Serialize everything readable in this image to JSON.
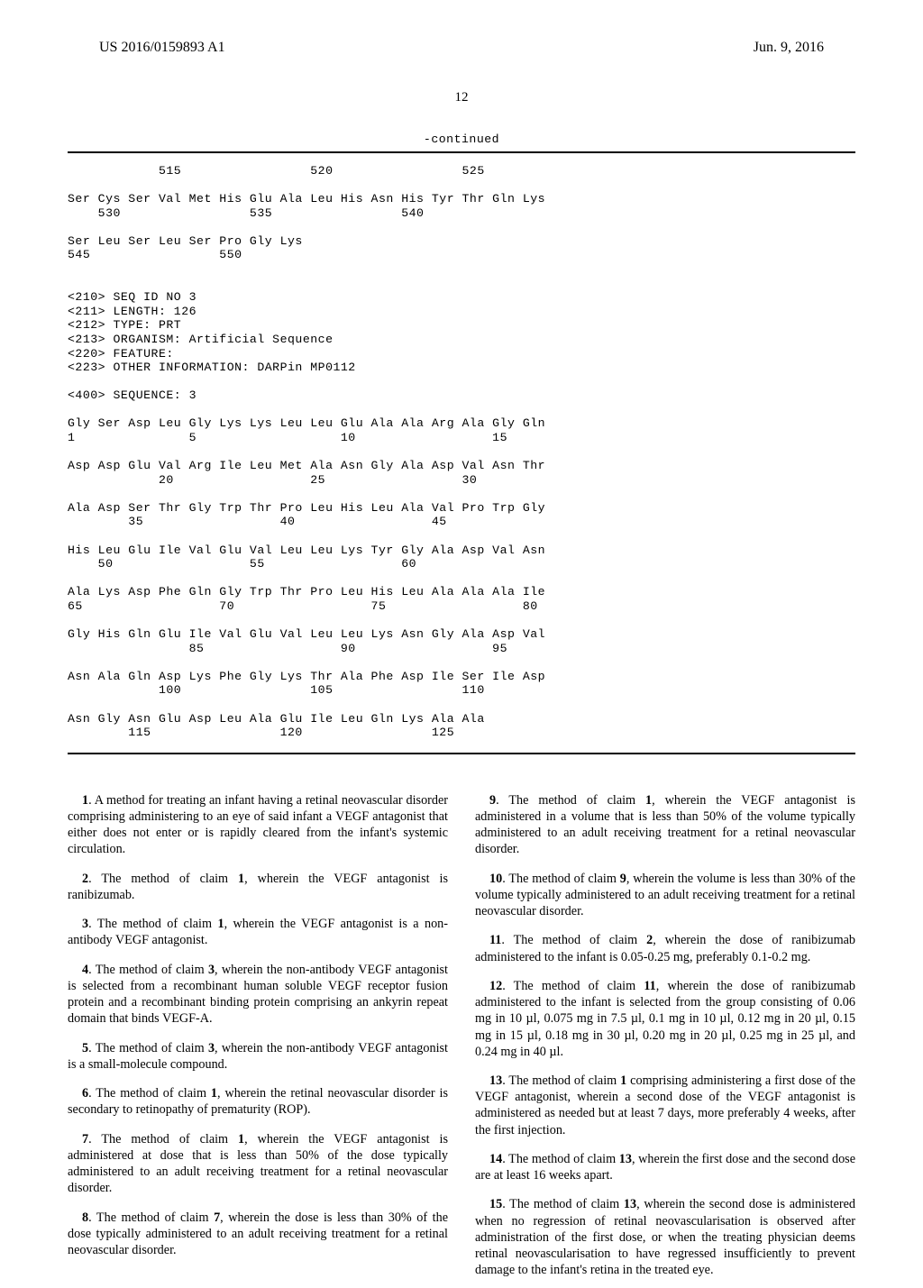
{
  "header": {
    "pub_number": "US 2016/0159893 A1",
    "pub_date": "Jun. 9, 2016"
  },
  "page_number": "12",
  "continued_label": "-continued",
  "sequence_listing": "            515                 520                 525\n\nSer Cys Ser Val Met His Glu Ala Leu His Asn His Tyr Thr Gln Lys\n    530                 535                 540\n\nSer Leu Ser Leu Ser Pro Gly Lys\n545                 550\n\n\n<210> SEQ ID NO 3\n<211> LENGTH: 126\n<212> TYPE: PRT\n<213> ORGANISM: Artificial Sequence\n<220> FEATURE:\n<223> OTHER INFORMATION: DARPin MP0112\n\n<400> SEQUENCE: 3\n\nGly Ser Asp Leu Gly Lys Lys Leu Leu Glu Ala Ala Arg Ala Gly Gln\n1               5                   10                  15\n\nAsp Asp Glu Val Arg Ile Leu Met Ala Asn Gly Ala Asp Val Asn Thr\n            20                  25                  30\n\nAla Asp Ser Thr Gly Trp Thr Pro Leu His Leu Ala Val Pro Trp Gly\n        35                  40                  45\n\nHis Leu Glu Ile Val Glu Val Leu Leu Lys Tyr Gly Ala Asp Val Asn\n    50                  55                  60\n\nAla Lys Asp Phe Gln Gly Trp Thr Pro Leu His Leu Ala Ala Ala Ile\n65                  70                  75                  80\n\nGly His Gln Glu Ile Val Glu Val Leu Leu Lys Asn Gly Ala Asp Val\n                85                  90                  95\n\nAsn Ala Gln Asp Lys Phe Gly Lys Thr Ala Phe Asp Ile Ser Ile Asp\n            100                 105                 110\n\nAsn Gly Asn Glu Asp Leu Ala Glu Ile Leu Gln Lys Ala Ala\n        115                 120                 125",
  "claims": {
    "left": [
      {
        "num": "1",
        "text": ". A method for treating an infant having a retinal neovascular disorder comprising administering to an eye of said infant a VEGF antagonist that either does not enter or is rapidly cleared from the infant's systemic circulation."
      },
      {
        "num": "2",
        "text": ". The method of claim ",
        "ref": "1",
        "tail": ", wherein the VEGF antagonist is ranibizumab."
      },
      {
        "num": "3",
        "text": ". The method of claim ",
        "ref": "1",
        "tail": ", wherein the VEGF antagonist is a non-antibody VEGF antagonist."
      },
      {
        "num": "4",
        "text": ". The method of claim ",
        "ref": "3",
        "tail": ", wherein the non-antibody VEGF antagonist is selected from a recombinant human soluble VEGF receptor fusion protein and a recombinant binding protein comprising an ankyrin repeat domain that binds VEGF-A."
      },
      {
        "num": "5",
        "text": ". The method of claim ",
        "ref": "3",
        "tail": ", wherein the non-antibody VEGF antagonist is a small-molecule compound."
      },
      {
        "num": "6",
        "text": ". The method of claim ",
        "ref": "1",
        "tail": ", wherein the retinal neovascular disorder is secondary to retinopathy of prematurity (ROP)."
      },
      {
        "num": "7",
        "text": ". The method of claim ",
        "ref": "1",
        "tail": ", wherein the VEGF antagonist is administered at dose that is less than 50% of the dose typically administered to an adult receiving treatment for a retinal neovascular disorder."
      },
      {
        "num": "8",
        "text": ". The method of claim ",
        "ref": "7",
        "tail": ", wherein the dose is less than 30% of the dose typically administered to an adult receiving treatment for a retinal neovascular disorder."
      }
    ],
    "right": [
      {
        "num": "9",
        "text": ". The method of claim ",
        "ref": "1",
        "tail": ", wherein the VEGF antagonist is administered in a volume that is less than 50% of the volume typically administered to an adult receiving treatment for a retinal neovascular disorder."
      },
      {
        "num": "10",
        "text": ". The method of claim ",
        "ref": "9",
        "tail": ", wherein the volume is less than 30% of the volume typically administered to an adult receiving treatment for a retinal neovascular disorder."
      },
      {
        "num": "11",
        "text": ". The method of claim ",
        "ref": "2",
        "tail": ", wherein the dose of ranibizumab administered to the infant is 0.05-0.25 mg, preferably 0.1-0.2 mg."
      },
      {
        "num": "12",
        "text": ". The method of claim ",
        "ref": "11",
        "tail": ", wherein the dose of ranibizumab administered to the infant is selected from the group consisting of 0.06 mg in 10 µl, 0.075 mg in 7.5 µl, 0.1 mg in 10 µl, 0.12 mg in 20 µl, 0.15 mg in 15 µl, 0.18 mg in 30 µl, 0.20 mg in 20 µl, 0.25 mg in 25 µl, and 0.24 mg in 40 µl."
      },
      {
        "num": "13",
        "text": ". The method of claim ",
        "ref": "1",
        "tail": " comprising administering a first dose of the VEGF antagonist, wherein a second dose of the VEGF antagonist is administered as needed but at least 7 days, more preferably 4 weeks, after the first injection."
      },
      {
        "num": "14",
        "text": ". The method of claim ",
        "ref": "13",
        "tail": ", wherein the first dose and the second dose are at least 16 weeks apart."
      },
      {
        "num": "15",
        "text": ". The method of claim ",
        "ref": "13",
        "tail": ", wherein the second dose is administered when no regression of retinal neovascularisation is observed after administration of the first dose, or when the treating physician deems retinal neovascularisation to have regressed insufficiently to prevent damage to the infant's retina in the treated eye."
      }
    ]
  }
}
